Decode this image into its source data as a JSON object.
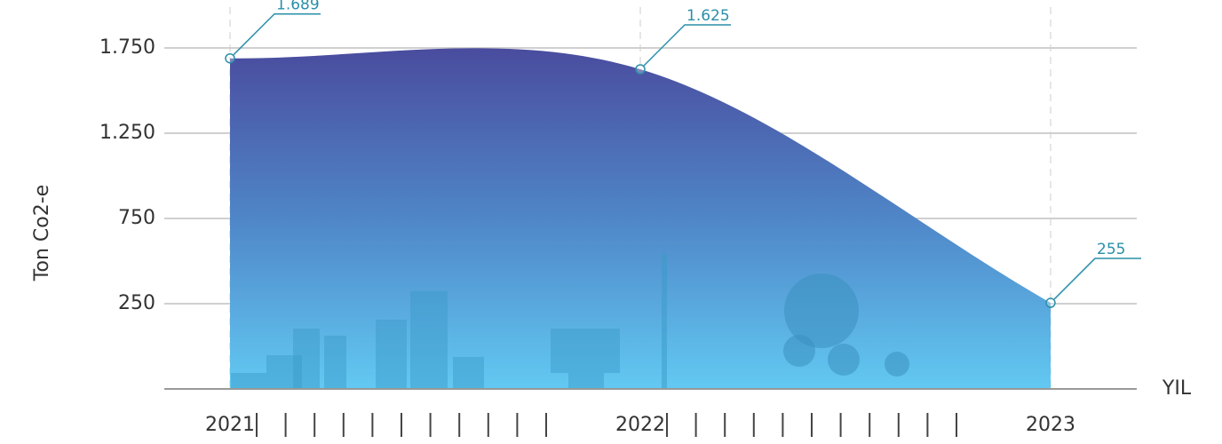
{
  "chart_data": {
    "type": "area",
    "y_label": "Ton Co2-e",
    "x_label": "YIL",
    "categories": [
      "2021",
      "2022",
      "2023"
    ],
    "series": [
      {
        "name": null,
        "color": "#4a4c9e",
        "values": [
          1689,
          1625,
          255
        ],
        "value_labels": [
          "1.689",
          "1.625",
          "255"
        ]
      }
    ],
    "ylim": [
      -250,
      2000
    ],
    "yticks": [
      {
        "value": 250,
        "label": "250"
      },
      {
        "value": 750,
        "label": "750"
      },
      {
        "value": 1250,
        "label": "1.250"
      },
      {
        "value": 1750,
        "label": "1.750"
      }
    ],
    "grid": true
  }
}
